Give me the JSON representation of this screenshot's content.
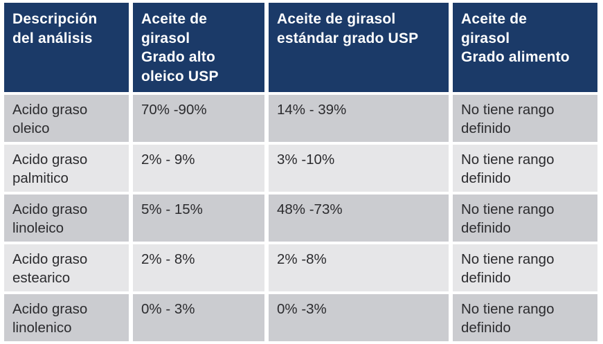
{
  "colors": {
    "header_bg": "#1b3a68",
    "header_text": "#ffffff",
    "row_dark": "#cbccd0",
    "row_light": "#e6e6e8",
    "cell_text": "#2b2b2e",
    "gutter": "#ffffff"
  },
  "table": {
    "headers": [
      "Descripción\ndel análisis",
      "Aceite de\ngirasol\nGrado alto\noleico USP",
      "Aceite de girasol\nestándar grado USP",
      "Aceite de\ngirasol\nGrado alimento"
    ],
    "rows": [
      {
        "cells": [
          "Acido graso\noleico",
          "70% -90%",
          "14% - 39%",
          "No tiene rango\ndefinido"
        ]
      },
      {
        "cells": [
          "Acido graso\npalmitico",
          "2% - 9%",
          "3% -10%",
          "No tiene rango\ndefinido"
        ]
      },
      {
        "cells": [
          "Acido graso\nlinoleico",
          "5% - 15%",
          "48% -73%",
          "No tiene rango\ndefinido"
        ]
      },
      {
        "cells": [
          "Acido graso\nestearico",
          "2% - 8%",
          "2% -8%",
          "No tiene rango\ndefinido"
        ]
      },
      {
        "cells": [
          "Acido graso\nlinolenico",
          "0% - 3%",
          "0% -3%",
          "No tiene rango\ndefinido"
        ]
      }
    ]
  },
  "chart_data": {
    "type": "table",
    "columns": [
      "Descripción del análisis",
      "Aceite de girasol Grado alto oleico USP",
      "Aceite de girasol estándar grado USP",
      "Aceite de girasol Grado alimento"
    ],
    "rows": [
      [
        "Acido graso oleico",
        "70% -90%",
        "14% - 39%",
        "No tiene rango definido"
      ],
      [
        "Acido graso palmitico",
        "2% - 9%",
        "3% -10%",
        "No tiene rango definido"
      ],
      [
        "Acido graso linoleico",
        "5% - 15%",
        "48% -73%",
        "No tiene rango definido"
      ],
      [
        "Acido graso estearico",
        "2% - 8%",
        "2% -8%",
        "No tiene rango definido"
      ],
      [
        "Acido graso linolenico",
        "0% - 3%",
        "0% -3%",
        "No tiene rango definido"
      ]
    ]
  }
}
